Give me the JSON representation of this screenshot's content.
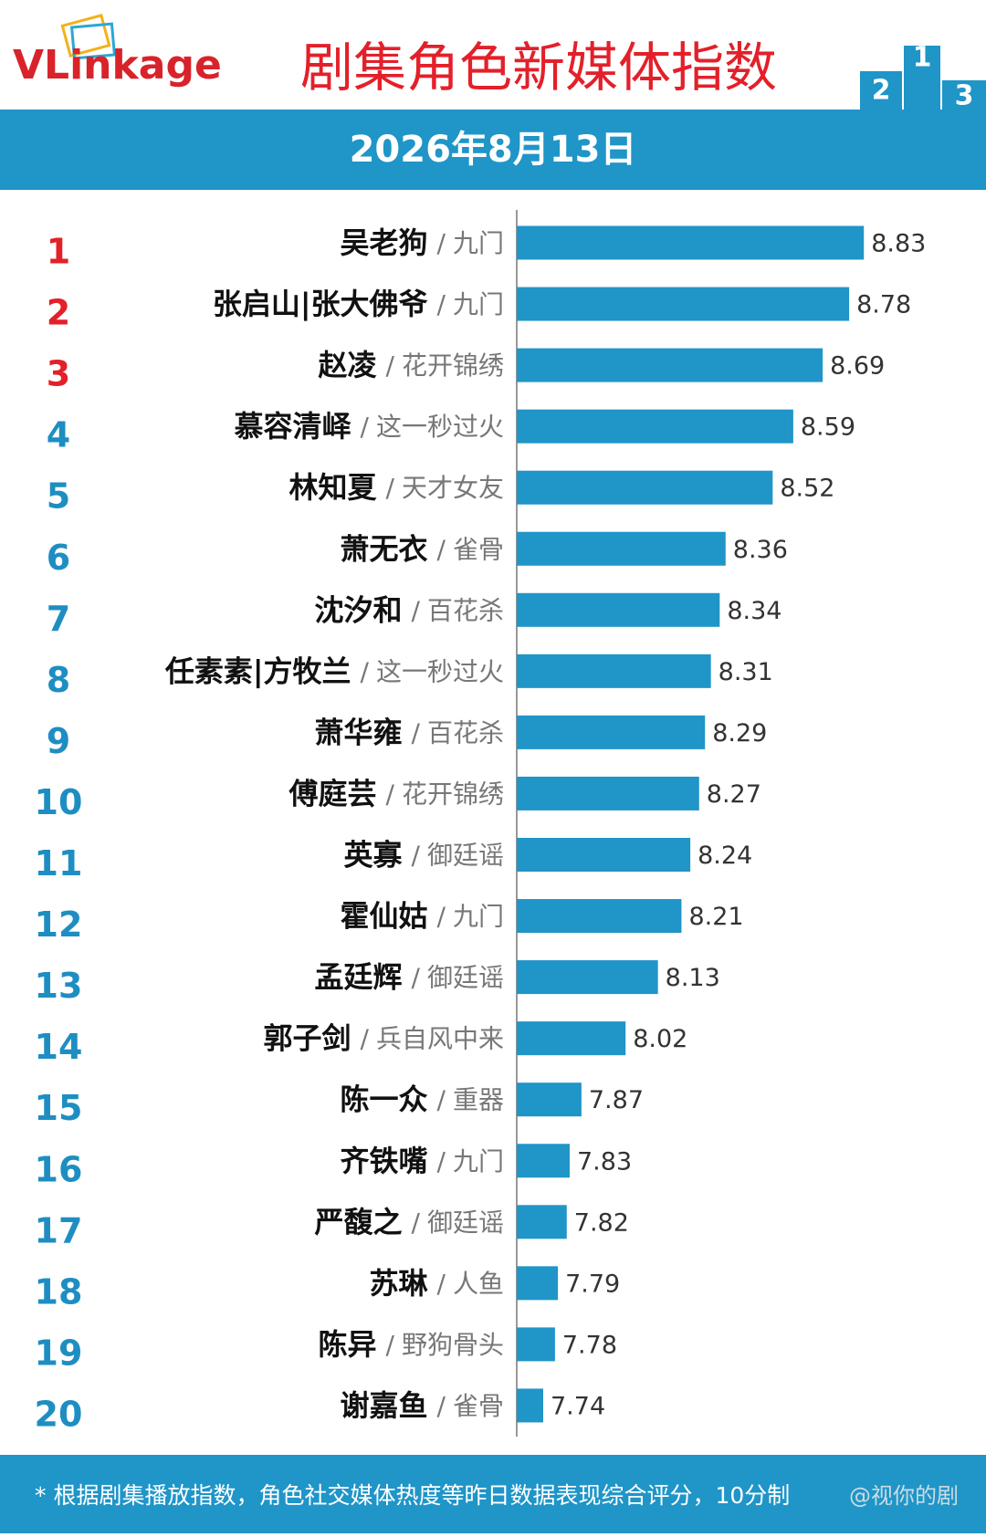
{
  "logo": "VLinkage",
  "podium_labels": [
    2,
    1,
    3
  ],
  "watermark": "@视你的剧",
  "footnote": "* 根据剧集播放指数，角色社交媒体热度等昨日数据表现综合评分，10分制",
  "chart_data": {
    "type": "bar",
    "orientation": "horizontal",
    "title": "剧集角色新媒体指数",
    "subtitle": "2026年8月13日",
    "separator": "/",
    "ranks": [
      1,
      2,
      3,
      4,
      5,
      6,
      7,
      8,
      9,
      10,
      11,
      12,
      13,
      14,
      15,
      16,
      17,
      18,
      19,
      20
    ],
    "rank_colors": [
      "#e3202a",
      "#e3202a",
      "#e3202a",
      "#1e8ec2",
      "#1e8ec2",
      "#1e8ec2",
      "#1e8ec2",
      "#1e8ec2",
      "#1e8ec2",
      "#1e8ec2",
      "#1e8ec2",
      "#1e8ec2",
      "#1e8ec2",
      "#1e8ec2",
      "#1e8ec2",
      "#1e8ec2",
      "#1e8ec2",
      "#1e8ec2",
      "#1e8ec2",
      "#1e8ec2"
    ],
    "categories": [
      "吴老狗",
      "张启山|张大佛爷",
      "赵凌",
      "慕容清峄",
      "林知夏",
      "萧无衣",
      "沈汐和",
      "任素素|方牧兰",
      "萧华雍",
      "傅庭芸",
      "英寡",
      "霍仙姑",
      "孟廷辉",
      "郭子剑",
      "陈一众",
      "齐铁嘴",
      "严馥之",
      "苏琳",
      "陈异",
      "谢嘉鱼"
    ],
    "shows": [
      "九门",
      "九门",
      "花开锦绣",
      "这一秒过火",
      "天才女友",
      "雀骨",
      "百花杀",
      "这一秒过火",
      "百花杀",
      "花开锦绣",
      "御廷谣",
      "九门",
      "御廷谣",
      "兵自风中来",
      "重器",
      "九门",
      "御廷谣",
      "人鱼",
      "野狗骨头",
      "雀骨"
    ],
    "values": [
      8.83,
      8.78,
      8.69,
      8.59,
      8.52,
      8.36,
      8.34,
      8.31,
      8.29,
      8.27,
      8.24,
      8.21,
      8.13,
      8.02,
      7.87,
      7.83,
      7.82,
      7.79,
      7.78,
      7.74
    ],
    "color": "#1f95c8",
    "xlim": [
      7.65,
      9.0
    ]
  }
}
